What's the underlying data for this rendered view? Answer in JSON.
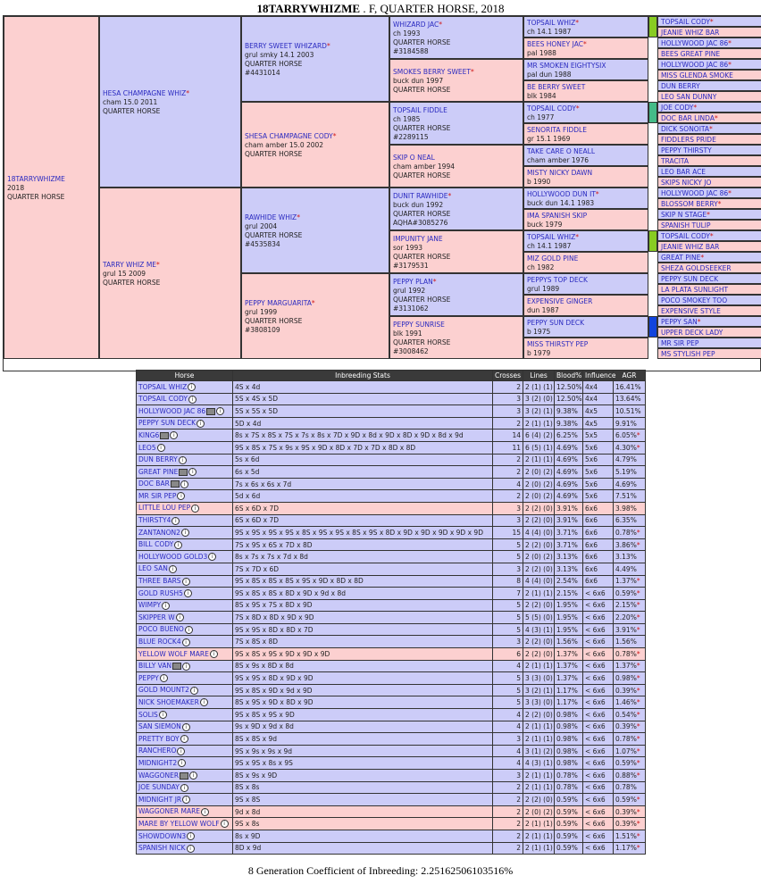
{
  "title": {
    "name": "18TARRYWHIZME",
    "rest": " . F, QUARTER HORSE, 2018"
  },
  "pedigree": [
    {
      "lines": [
        "18TARRYWHIZME",
        "2018",
        "QUARTER HORSE"
      ],
      "sex": "f"
    },
    {
      "lines": [
        "HESA CHAMPAGNE WHIZ",
        "cham 15.0 2011",
        "QUARTER HORSE"
      ],
      "star": true,
      "sex": "m"
    },
    {
      "lines": [
        "TARRY WHIZ ME",
        "grul 15 2009",
        "QUARTER HORSE"
      ],
      "star": true,
      "sex": "f"
    },
    {
      "lines": [
        "BERRY SWEET WHIZARD",
        "grul smky 14.1 2003",
        "QUARTER HORSE",
        "#4431014"
      ],
      "star": true,
      "sex": "m"
    },
    {
      "lines": [
        "SHESA CHAMPAGNE CODY",
        "cham amber 15.0 2002",
        "QUARTER HORSE"
      ],
      "star": true,
      "sex": "f"
    },
    {
      "lines": [
        "RAWHIDE WHIZ",
        "grul 2004",
        "QUARTER HORSE",
        "#4535834"
      ],
      "star": true,
      "sex": "m"
    },
    {
      "lines": [
        "PEPPY MARGUARITA",
        "grul 1999",
        "QUARTER HORSE",
        "#3808109"
      ],
      "star": true,
      "sex": "f"
    },
    {
      "lines": [
        "WHIZARD JAC",
        "ch 1993",
        "QUARTER HORSE",
        "#3184588"
      ],
      "star": true,
      "sex": "m"
    },
    {
      "lines": [
        "SMOKES BERRY SWEET",
        "buck dun 1997",
        "QUARTER HORSE"
      ],
      "star": true,
      "sex": "f"
    },
    {
      "lines": [
        "TOPSAIL FIDDLE",
        "ch 1985",
        "QUARTER HORSE",
        "#2289115"
      ],
      "star": false,
      "sex": "m"
    },
    {
      "lines": [
        "SKIP O NEAL",
        "cham amber 1994",
        "QUARTER HORSE"
      ],
      "star": false,
      "sex": "f"
    },
    {
      "lines": [
        "DUNIT RAWHIDE",
        "buck dun 1992",
        "QUARTER HORSE",
        "AQHA#3085276"
      ],
      "star": true,
      "sex": "m"
    },
    {
      "lines": [
        "IMPUNITY JANE",
        "sor 1993",
        "QUARTER HORSE",
        "#3179531"
      ],
      "star": false,
      "sex": "f"
    },
    {
      "lines": [
        "PEPPY PLAN",
        "grul 1992",
        "QUARTER HORSE",
        "#3131062"
      ],
      "star": true,
      "sex": "m"
    },
    {
      "lines": [
        "PEPPY SUNRISE",
        "blk 1991",
        "QUARTER HORSE",
        "#3008462"
      ],
      "star": false,
      "sex": "f"
    },
    {
      "lines": [
        "TOPSAIL WHIZ",
        "ch 14.1 1987"
      ],
      "star": true,
      "sex": "m"
    },
    {
      "lines": [
        "BEES HONEY JAC",
        "pal 1988"
      ],
      "star": true,
      "sex": "f"
    },
    {
      "lines": [
        "MR SMOKEN EIGHTYSIX",
        "pal dun 1988"
      ],
      "star": false,
      "sex": "m"
    },
    {
      "lines": [
        "BE BERRY SWEET",
        "blk 1984"
      ],
      "star": false,
      "sex": "f"
    },
    {
      "lines": [
        "TOPSAIL CODY",
        "ch 1977"
      ],
      "star": true,
      "sex": "m"
    },
    {
      "lines": [
        "SENORITA FIDDLE",
        "gr 15.1 1969"
      ],
      "star": false,
      "sex": "f"
    },
    {
      "lines": [
        "TAKE CARE O NEALL",
        "cham amber 1976"
      ],
      "star": false,
      "sex": "m"
    },
    {
      "lines": [
        "MISTY NICKY DAWN",
        "b 1990"
      ],
      "star": false,
      "sex": "f"
    },
    {
      "lines": [
        "HOLLYWOOD DUN IT",
        "buck dun 14.1 1983"
      ],
      "star": true,
      "sex": "m"
    },
    {
      "lines": [
        "IMA SPANISH SKIP",
        "buck 1979"
      ],
      "star": false,
      "sex": "f"
    },
    {
      "lines": [
        "TOPSAIL WHIZ",
        "ch 14.1 1987"
      ],
      "star": true,
      "sex": "m"
    },
    {
      "lines": [
        "MIZ GOLD PINE",
        "ch 1982"
      ],
      "star": false,
      "sex": "f"
    },
    {
      "lines": [
        "PEPPYS TOP DECK",
        "grul 1989"
      ],
      "star": false,
      "sex": "m"
    },
    {
      "lines": [
        "EXPENSIVE GINGER",
        "dun 1987"
      ],
      "star": false,
      "sex": "f"
    },
    {
      "lines": [
        "PEPPY SUN DECK",
        "b 1975"
      ],
      "star": false,
      "sex": "m"
    },
    {
      "lines": [
        "MISS THIRSTY PEP",
        "b 1979"
      ],
      "star": false,
      "sex": "f"
    },
    {
      "lines": [
        "TOPSAIL CODY"
      ],
      "star": true,
      "sex": "m"
    },
    {
      "lines": [
        "JEANIE WHIZ BAR"
      ],
      "star": false,
      "sex": "f"
    },
    {
      "lines": [
        "HOLLYWOOD JAC 86"
      ],
      "star": true,
      "sex": "m"
    },
    {
      "lines": [
        "BEES GREAT PINE"
      ],
      "star": false,
      "sex": "f"
    },
    {
      "lines": [
        "HOLLYWOOD JAC 86"
      ],
      "star": true,
      "sex": "m"
    },
    {
      "lines": [
        "MISS GLENDA SMOKE"
      ],
      "star": false,
      "sex": "f"
    },
    {
      "lines": [
        "DUN BERRY"
      ],
      "star": false,
      "sex": "m"
    },
    {
      "lines": [
        "LEO SAN DUNNY"
      ],
      "star": false,
      "sex": "f"
    },
    {
      "lines": [
        "JOE CODY"
      ],
      "star": true,
      "sex": "m"
    },
    {
      "lines": [
        "DOC BAR LINDA"
      ],
      "star": true,
      "sex": "f"
    },
    {
      "lines": [
        "DICK SONOITA"
      ],
      "star": true,
      "sex": "m"
    },
    {
      "lines": [
        "FIDDLERS PRIDE"
      ],
      "star": false,
      "sex": "f"
    },
    {
      "lines": [
        "PEPPY THIRSTY"
      ],
      "star": false,
      "sex": "m"
    },
    {
      "lines": [
        "TRACITA"
      ],
      "star": false,
      "sex": "f"
    },
    {
      "lines": [
        "LEO BAR ACE"
      ],
      "star": false,
      "sex": "m"
    },
    {
      "lines": [
        "SKIPS NICKY JO"
      ],
      "star": false,
      "sex": "f"
    },
    {
      "lines": [
        "HOLLYWOOD JAC 86"
      ],
      "star": true,
      "sex": "m"
    },
    {
      "lines": [
        "BLOSSOM BERRY"
      ],
      "star": true,
      "sex": "f"
    },
    {
      "lines": [
        "SKIP N STAGE"
      ],
      "star": true,
      "sex": "m"
    },
    {
      "lines": [
        "SPANISH TULIP"
      ],
      "star": false,
      "sex": "f"
    },
    {
      "lines": [
        "TOPSAIL CODY"
      ],
      "star": true,
      "sex": "m"
    },
    {
      "lines": [
        "JEANIE WHIZ BAR"
      ],
      "star": false,
      "sex": "f"
    },
    {
      "lines": [
        "GREAT PINE"
      ],
      "star": true,
      "sex": "m"
    },
    {
      "lines": [
        "SHEZA GOLDSEEKER"
      ],
      "star": false,
      "sex": "f"
    },
    {
      "lines": [
        "PEPPY SUN DECK"
      ],
      "star": false,
      "sex": "m"
    },
    {
      "lines": [
        "LA PLATA SUNLIGHT"
      ],
      "star": false,
      "sex": "f"
    },
    {
      "lines": [
        "POCO SMOKEY TOO"
      ],
      "star": false,
      "sex": "m"
    },
    {
      "lines": [
        "EXPENSIVE STYLE"
      ],
      "star": false,
      "sex": "f"
    },
    {
      "lines": [
        "PEPPY SAN"
      ],
      "star": true,
      "sex": "m"
    },
    {
      "lines": [
        "UPPER DECK LADY"
      ],
      "star": false,
      "sex": "f"
    },
    {
      "lines": [
        "MR SIR PEP"
      ],
      "star": false,
      "sex": "m"
    },
    {
      "lines": [
        "MS STYLISH PEP"
      ],
      "star": false,
      "sex": "f"
    }
  ],
  "colorMarks": [
    "#88cc22",
    "#44bb88",
    "#88cc22",
    "#1144dd"
  ],
  "headers": [
    "Horse",
    "Inbreeding Stats",
    "Crosses",
    "Lines",
    "Blood%",
    "Influence",
    "AGR"
  ],
  "rows": [
    {
      "horse": "TOPSAIL WHIZ",
      "stats": "4S x 4d",
      "crosses": "2",
      "lines": "2 (1) (1)",
      "blood": "12.50%",
      "influence": "4x4",
      "agr": "16.41%",
      "star": false,
      "sex": "m",
      "tree": false
    },
    {
      "horse": "TOPSAIL CODY",
      "stats": "5S x 4S x 5D",
      "crosses": "3",
      "lines": "3 (2) (0)",
      "blood": "12.50%",
      "influence": "4x4",
      "agr": "13.64%",
      "star": false,
      "sex": "m",
      "tree": false
    },
    {
      "horse": "HOLLYWOOD JAC 86",
      "stats": "5S x 5S x 5D",
      "crosses": "3",
      "lines": "3 (2) (1)",
      "blood": "9.38%",
      "influence": "4x5",
      "agr": "10.51%",
      "star": false,
      "sex": "m",
      "tree": true
    },
    {
      "horse": "PEPPY SUN DECK",
      "stats": "5D x 4d",
      "crosses": "2",
      "lines": "2 (1) (1)",
      "blood": "9.38%",
      "influence": "4x5",
      "agr": "9.91%",
      "star": false,
      "sex": "m",
      "tree": false
    },
    {
      "horse": "KING6",
      "stats": "8s x 7S x 8S x 7S x 7s x 8s x 7D x 9D x 8d x 9D x 8D x 9D x 8d x 9d",
      "crosses": "14",
      "lines": "6 (4) (2)",
      "blood": "6.25%",
      "influence": "5x5",
      "agr": "6.05%",
      "star": true,
      "sex": "m",
      "tree": true
    },
    {
      "horse": "LEO5",
      "stats": "9S x 8S x 7S x 9s x 9S x 9D x 8D x 7D x 7D x 8D x 8D",
      "crosses": "11",
      "lines": "6 (5) (1)",
      "blood": "4.69%",
      "influence": "5x6",
      "agr": "4.30%",
      "star": true,
      "sex": "m",
      "tree": false
    },
    {
      "horse": "DUN BERRY",
      "stats": "5s x 6d",
      "crosses": "2",
      "lines": "2 (1) (1)",
      "blood": "4.69%",
      "influence": "5x6",
      "agr": "4.79%",
      "star": false,
      "sex": "m",
      "tree": false
    },
    {
      "horse": "GREAT PINE",
      "stats": "6s x 5d",
      "crosses": "2",
      "lines": "2 (0) (2)",
      "blood": "4.69%",
      "influence": "5x6",
      "agr": "5.19%",
      "star": false,
      "sex": "m",
      "tree": true
    },
    {
      "horse": "DOC BAR",
      "stats": "7s x 6s x 6s x 7d",
      "crosses": "4",
      "lines": "2 (0) (2)",
      "blood": "4.69%",
      "influence": "5x6",
      "agr": "4.69%",
      "star": false,
      "sex": "m",
      "tree": true
    },
    {
      "horse": "MR SIR PEP",
      "stats": "5d x 6d",
      "crosses": "2",
      "lines": "2 (0) (2)",
      "blood": "4.69%",
      "influence": "5x6",
      "agr": "7.51%",
      "star": false,
      "sex": "m",
      "tree": false
    },
    {
      "horse": "LITTLE LOU PEP",
      "stats": "6S x 6D x 7D",
      "crosses": "3",
      "lines": "2 (2) (0)",
      "blood": "3.91%",
      "influence": "6x6",
      "agr": "3.98%",
      "star": false,
      "sex": "f",
      "tree": false
    },
    {
      "horse": "THIRSTY4",
      "stats": "6S x 6D x 7D",
      "crosses": "3",
      "lines": "2 (2) (0)",
      "blood": "3.91%",
      "influence": "6x6",
      "agr": "6.35%",
      "star": false,
      "sex": "m",
      "tree": false
    },
    {
      "horse": "ZANTANON2",
      "stats": "9S x 9S x 9S x 9S x 8S x 9S x 9S x 8S x 9S x 8D x 9D x 9D x 9D x 9D x 9D",
      "crosses": "15",
      "lines": "4 (4) (0)",
      "blood": "3.71%",
      "influence": "6x6",
      "agr": "0.78%",
      "star": true,
      "sex": "m",
      "tree": false
    },
    {
      "horse": "BILL CODY",
      "stats": "7S x 9S x 6S x 7D x 8D",
      "crosses": "5",
      "lines": "2 (2) (0)",
      "blood": "3.71%",
      "influence": "6x6",
      "agr": "3.86%",
      "star": true,
      "sex": "m",
      "tree": false
    },
    {
      "horse": "HOLLYWOOD GOLD3",
      "stats": "8s x 7s x 7s x 7d x 8d",
      "crosses": "5",
      "lines": "2 (0) (2)",
      "blood": "3.13%",
      "influence": "6x6",
      "agr": "3.13%",
      "star": false,
      "sex": "m",
      "tree": false
    },
    {
      "horse": "LEO SAN",
      "stats": "7S x 7D x 6D",
      "crosses": "3",
      "lines": "2 (2) (0)",
      "blood": "3.13%",
      "influence": "6x6",
      "agr": "4.49%",
      "star": false,
      "sex": "m",
      "tree": false
    },
    {
      "horse": "THREE BARS",
      "stats": "9S x 8S x 8S x 8S x 9S x 9D x 8D x 8D",
      "crosses": "8",
      "lines": "4 (4) (0)",
      "blood": "2.54%",
      "influence": "6x6",
      "agr": "1.37%",
      "star": true,
      "sex": "m",
      "tree": false
    },
    {
      "horse": "GOLD RUSH5",
      "stats": "9S x 8S x 8S x 8D x 9D x 9d x 8d",
      "crosses": "7",
      "lines": "2 (1) (1)",
      "blood": "2.15%",
      "influence": "< 6x6",
      "agr": "0.59%",
      "star": true,
      "sex": "m",
      "tree": false
    },
    {
      "horse": "WIMPY",
      "stats": "8S x 9S x 7S x 8D x 9D",
      "crosses": "5",
      "lines": "2 (2) (0)",
      "blood": "1.95%",
      "influence": "< 6x6",
      "agr": "2.15%",
      "star": true,
      "sex": "m",
      "tree": false
    },
    {
      "horse": "SKIPPER W",
      "stats": "7S x 8D x 8D x 9D x 9D",
      "crosses": "5",
      "lines": "5 (5) (0)",
      "blood": "1.95%",
      "influence": "< 6x6",
      "agr": "2.20%",
      "star": true,
      "sex": "m",
      "tree": false
    },
    {
      "horse": "POCO BUENO",
      "stats": "9S x 9S x 8D x 8D x 7D",
      "crosses": "5",
      "lines": "4 (3) (1)",
      "blood": "1.95%",
      "influence": "< 6x6",
      "agr": "3.91%",
      "star": true,
      "sex": "m",
      "tree": false
    },
    {
      "horse": "BLUE ROCK4",
      "stats": "7S x 8S x 8D",
      "crosses": "3",
      "lines": "2 (2) (0)",
      "blood": "1.56%",
      "influence": "< 6x6",
      "agr": "1.56%",
      "star": false,
      "sex": "m",
      "tree": false
    },
    {
      "horse": "YELLOW WOLF MARE",
      "stats": "9S x 8S x 9S x 9D x 9D x 9D",
      "crosses": "6",
      "lines": "2 (2) (0)",
      "blood": "1.37%",
      "influence": "< 6x6",
      "agr": "0.78%",
      "star": true,
      "sex": "f",
      "tree": false
    },
    {
      "horse": "BILLY VAN",
      "stats": "8S x 9s x 8D x 8d",
      "crosses": "4",
      "lines": "2 (1) (1)",
      "blood": "1.37%",
      "influence": "< 6x6",
      "agr": "1.37%",
      "star": true,
      "sex": "m",
      "tree": true
    },
    {
      "horse": "PEPPY",
      "stats": "9S x 9S x 8D x 9D x 9D",
      "crosses": "5",
      "lines": "3 (3) (0)",
      "blood": "1.37%",
      "influence": "< 6x6",
      "agr": "0.98%",
      "star": true,
      "sex": "m",
      "tree": false
    },
    {
      "horse": "GOLD MOUNT2",
      "stats": "9S x 8S x 9D x 9d x 9D",
      "crosses": "5",
      "lines": "3 (2) (1)",
      "blood": "1.17%",
      "influence": "< 6x6",
      "agr": "0.39%",
      "star": true,
      "sex": "m",
      "tree": false
    },
    {
      "horse": "NICK SHOEMAKER",
      "stats": "8S x 9S x 9D x 8D x 9D",
      "crosses": "5",
      "lines": "3 (3) (0)",
      "blood": "1.17%",
      "influence": "< 6x6",
      "agr": "1.46%",
      "star": true,
      "sex": "m",
      "tree": false
    },
    {
      "horse": "SOLIS",
      "stats": "9S x 8S x 9S x 9D",
      "crosses": "4",
      "lines": "2 (2) (0)",
      "blood": "0.98%",
      "influence": "< 6x6",
      "agr": "0.54%",
      "star": true,
      "sex": "m",
      "tree": false
    },
    {
      "horse": "SAN SIEMON",
      "stats": "9s x 9D x 9d x 8d",
      "crosses": "4",
      "lines": "2 (1) (1)",
      "blood": "0.98%",
      "influence": "< 6x6",
      "agr": "0.39%",
      "star": true,
      "sex": "m",
      "tree": false
    },
    {
      "horse": "PRETTY BOY",
      "stats": "8S x 8S x 9d",
      "crosses": "3",
      "lines": "2 (1) (1)",
      "blood": "0.98%",
      "influence": "< 6x6",
      "agr": "0.78%",
      "star": true,
      "sex": "m",
      "tree": false
    },
    {
      "horse": "RANCHERO",
      "stats": "9S x 9s x 9s x 9d",
      "crosses": "4",
      "lines": "3 (1) (2)",
      "blood": "0.98%",
      "influence": "< 6x6",
      "agr": "1.07%",
      "star": true,
      "sex": "m",
      "tree": false
    },
    {
      "horse": "MIDNIGHT2",
      "stats": "9S x 9S x 8s x 9S",
      "crosses": "4",
      "lines": "4 (3) (1)",
      "blood": "0.98%",
      "influence": "< 6x6",
      "agr": "0.59%",
      "star": true,
      "sex": "m",
      "tree": false
    },
    {
      "horse": "WAGGONER",
      "stats": "8S x 9s x 9D",
      "crosses": "3",
      "lines": "2 (1) (1)",
      "blood": "0.78%",
      "influence": "< 6x6",
      "agr": "0.88%",
      "star": true,
      "sex": "m",
      "tree": true
    },
    {
      "horse": "JOE SUNDAY",
      "stats": "8S x 8s",
      "crosses": "2",
      "lines": "2 (1) (1)",
      "blood": "0.78%",
      "influence": "< 6x6",
      "agr": "0.78%",
      "star": false,
      "sex": "m",
      "tree": false
    },
    {
      "horse": "MIDNIGHT JR",
      "stats": "9S x 8S",
      "crosses": "2",
      "lines": "2 (2) (0)",
      "blood": "0.59%",
      "influence": "< 6x6",
      "agr": "0.59%",
      "star": true,
      "sex": "m",
      "tree": false
    },
    {
      "horse": "WAGGONER MARE",
      "stats": "9d x 8d",
      "crosses": "2",
      "lines": "2 (0) (2)",
      "blood": "0.59%",
      "influence": "< 6x6",
      "agr": "0.39%",
      "star": true,
      "sex": "f",
      "tree": false
    },
    {
      "horse": "MARE BY YELLOW WOLF",
      "stats": "9S x 8s",
      "crosses": "2",
      "lines": "2 (1) (1)",
      "blood": "0.59%",
      "influence": "< 6x6",
      "agr": "0.39%",
      "star": true,
      "sex": "f",
      "tree": false
    },
    {
      "horse": "SHOWDOWN3",
      "stats": "8s x 9D",
      "crosses": "2",
      "lines": "2 (1) (1)",
      "blood": "0.59%",
      "influence": "< 6x6",
      "agr": "1.51%",
      "star": true,
      "sex": "m",
      "tree": false
    },
    {
      "horse": "SPANISH NICK",
      "stats": "8D x 9d",
      "crosses": "2",
      "lines": "2 (1) (1)",
      "blood": "0.59%",
      "influence": "< 6x6",
      "agr": "1.17%",
      "star": true,
      "sex": "m",
      "tree": false
    }
  ],
  "coi": "8 Generation Coefficient of Inbreeding: 2.25162506103516%",
  "info_glyph": "i",
  "star_glyph": "*"
}
